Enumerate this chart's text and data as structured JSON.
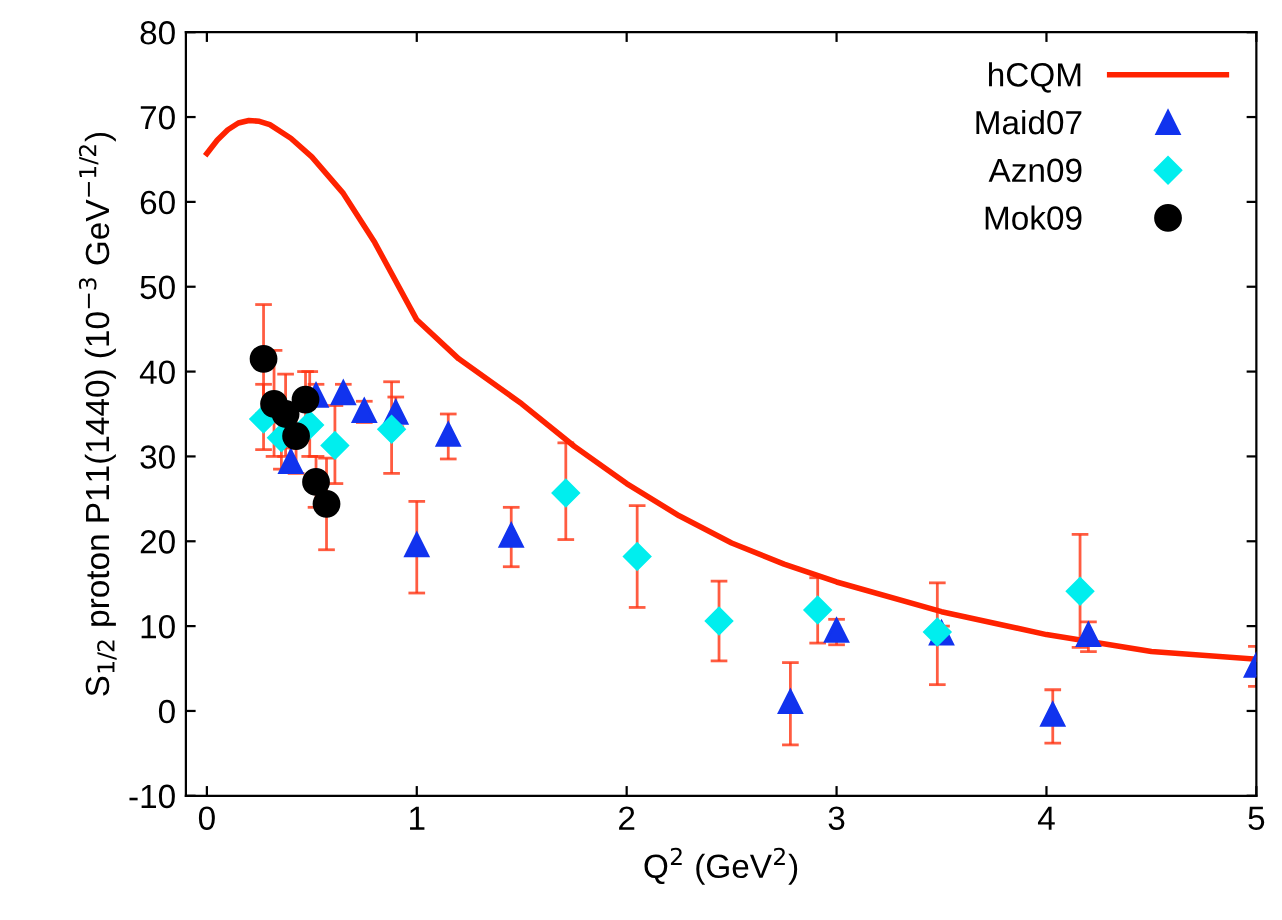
{
  "chart_data": {
    "type": "scatter",
    "xlabel": "Q$^{2}$ (GeV$^{2}$)",
    "ylabel": "S$_{1/2}$ proton P11(1440) (10$^{−3}$ GeV$^{−1/2}$)",
    "xlim": [
      -0.1,
      5
    ],
    "ylim": [
      -10,
      80
    ],
    "xticks": [
      0,
      1,
      2,
      3,
      4,
      5
    ],
    "yticks": [
      -10,
      0,
      10,
      20,
      30,
      40,
      50,
      60,
      70,
      80
    ],
    "grid": false,
    "legend": "top right",
    "series": [
      {
        "name": "hCQM",
        "type": "line",
        "color": "#ff2200",
        "marker": "none",
        "line_style": "solid",
        "x": [
          0,
          0.05,
          0.1,
          0.15,
          0.2,
          0.25,
          0.3,
          0.4,
          0.5,
          0.65,
          0.8,
          1.0,
          1.2,
          1.5,
          1.75,
          2.0,
          2.25,
          2.5,
          2.75,
          3.0,
          3.5,
          4.0,
          4.5,
          5.0
        ],
        "values": [
          65.7,
          67.3,
          68.5,
          69.3,
          69.6,
          69.5,
          69.1,
          67.5,
          65.3,
          61,
          55.2,
          46.1,
          41.5,
          36.2,
          31.2,
          26.8,
          23.0,
          19.8,
          17.3,
          15.2,
          11.7,
          9.0,
          7.0,
          6.1
        ]
      },
      {
        "name": "Maid07",
        "color": "#1133ee",
        "marker": "triangle",
        "x": [
          0.4,
          0.52,
          0.65,
          0.75,
          0.9,
          1.0,
          1.15,
          1.45,
          2.78,
          3.0,
          3.5,
          4.03,
          4.2,
          5.0
        ],
        "values": [
          29.4,
          37.2,
          37.5,
          35.4,
          35.2,
          19.6,
          32.6,
          20.7,
          1.1,
          9.5,
          9.2,
          -0.4,
          9.0,
          5.4
        ],
        "errors": [
          [
            28.5,
            31
          ],
          [
            36,
            38.5
          ],
          [
            36.5,
            38.5
          ],
          [
            34,
            36.5
          ],
          [
            33.5,
            37
          ],
          [
            13.9,
            24.7
          ],
          [
            29.7,
            35
          ],
          [
            17,
            24
          ],
          [
            -4,
            5.7
          ],
          [
            7.8,
            10.8
          ],
          [
            8,
            10
          ],
          [
            -3.8,
            2.5
          ],
          [
            7,
            10.5
          ],
          [
            2.9,
            7.6
          ]
        ]
      },
      {
        "name": "Azn09",
        "color": "#00eeee",
        "marker": "diamond",
        "x": [
          0.27,
          0.355,
          0.49,
          0.61,
          0.88,
          1.71,
          2.05,
          2.44,
          2.91,
          3.48,
          4.16
        ],
        "values": [
          34.4,
          32.2,
          33.7,
          31.3,
          33.2,
          25.7,
          18.2,
          10.6,
          11.9,
          9.3,
          14.1
        ],
        "errors": [
          [
            30.8,
            38.5
          ],
          [
            28.5,
            36
          ],
          [
            30,
            40
          ],
          [
            26.8,
            36
          ],
          [
            28,
            38.8
          ],
          [
            20.2,
            31.6
          ],
          [
            12.2,
            24.2
          ],
          [
            5.9,
            15.3
          ],
          [
            8,
            15.7
          ],
          [
            3.1,
            15.1
          ],
          [
            7.5,
            20.8
          ]
        ]
      },
      {
        "name": "Mok09",
        "color": "#000000",
        "marker": "circle",
        "x": [
          0.27,
          0.32,
          0.375,
          0.425,
          0.47,
          0.52,
          0.57
        ],
        "values": [
          41.5,
          36.2,
          35.0,
          32.4,
          36.7,
          27.0,
          24.4
        ],
        "errors": [
          [
            35,
            47.9
          ],
          [
            30,
            42.5
          ],
          [
            30,
            39.7
          ],
          [
            28,
            36
          ],
          [
            33,
            40
          ],
          [
            24,
            30
          ],
          [
            19,
            29.8
          ]
        ]
      }
    ]
  }
}
